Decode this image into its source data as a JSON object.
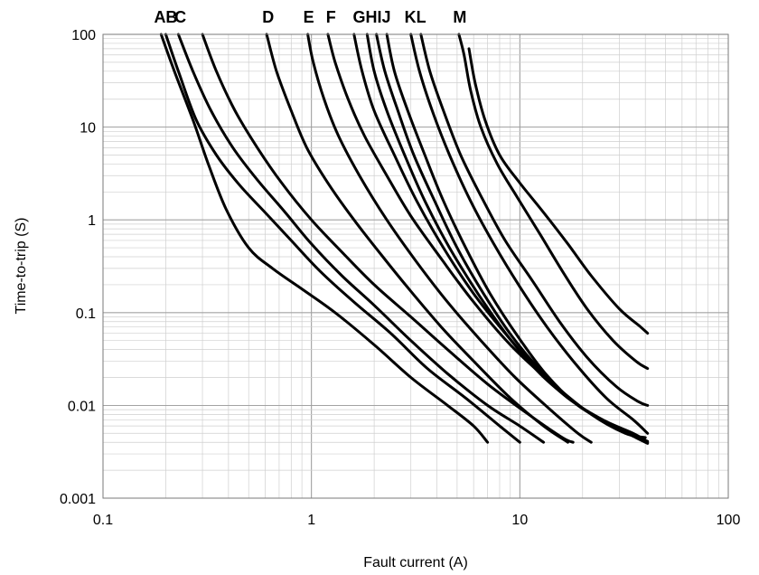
{
  "chart_data": {
    "type": "line",
    "xlabel": "Fault current (A)",
    "ylabel": "Time-to-trip (S)",
    "x_scale": "log",
    "y_scale": "log",
    "xlim": [
      0.1,
      100
    ],
    "ylim": [
      0.001,
      100
    ],
    "x_tick_labels": [
      "0.1",
      "1",
      "10",
      "100"
    ],
    "y_tick_labels": [
      "0.001",
      "0.01",
      "0.1",
      "1",
      "10",
      "100"
    ],
    "grid": true,
    "curve_labels": [
      "AB",
      "C",
      "D",
      "E",
      "F",
      "GHIJ",
      "KL",
      "M"
    ],
    "series": [
      {
        "x": [
          0.19,
          0.22,
          0.27,
          0.32,
          0.39,
          0.5,
          0.65,
          0.9,
          1.3,
          2,
          3,
          4.5,
          6,
          7
        ],
        "y": [
          100,
          40,
          12,
          4,
          1.3,
          0.5,
          0.3,
          0.18,
          0.1,
          0.045,
          0.02,
          0.01,
          0.006,
          0.004
        ]
      },
      {
        "x": [
          0.2,
          0.23,
          0.28,
          0.35,
          0.45,
          0.6,
          0.8,
          1.1,
          1.6,
          2.4,
          3.6,
          5.5,
          8,
          10
        ],
        "y": [
          100,
          40,
          12,
          5,
          2.4,
          1.2,
          0.6,
          0.28,
          0.13,
          0.06,
          0.025,
          0.012,
          0.006,
          0.004
        ]
      },
      {
        "x": [
          0.23,
          0.27,
          0.33,
          0.42,
          0.55,
          0.75,
          1,
          1.4,
          2,
          3,
          4.5,
          7,
          10,
          13
        ],
        "y": [
          100,
          40,
          15,
          6,
          2.7,
          1.2,
          0.55,
          0.25,
          0.12,
          0.05,
          0.022,
          0.01,
          0.006,
          0.004
        ]
      },
      {
        "x": [
          0.3,
          0.35,
          0.43,
          0.55,
          0.72,
          1,
          1.4,
          2,
          3,
          4.5,
          7,
          11,
          16,
          18
        ],
        "y": [
          100,
          40,
          15,
          6,
          2.5,
          1,
          0.45,
          0.2,
          0.09,
          0.04,
          0.017,
          0.008,
          0.0045,
          0.004
        ]
      },
      {
        "x": [
          0.61,
          0.68,
          0.8,
          0.95,
          1.2,
          1.6,
          2.2,
          3,
          4.2,
          6,
          9,
          13,
          17
        ],
        "y": [
          100,
          40,
          15,
          6,
          2.5,
          1,
          0.4,
          0.17,
          0.07,
          0.03,
          0.012,
          0.006,
          0.004
        ]
      },
      {
        "x": [
          0.96,
          1.02,
          1.15,
          1.35,
          1.7,
          2.3,
          3.2,
          4.5,
          6.5,
          9.5,
          14,
          19,
          22
        ],
        "y": [
          100,
          50,
          20,
          8,
          3,
          1,
          0.35,
          0.13,
          0.05,
          0.02,
          0.009,
          0.005,
          0.004
        ]
      },
      {
        "x": [
          1.2,
          1.3,
          1.5,
          1.8,
          2.3,
          3,
          4.2,
          6,
          9,
          14,
          22,
          32,
          40
        ],
        "y": [
          100,
          50,
          20,
          8,
          3,
          1.1,
          0.38,
          0.13,
          0.045,
          0.018,
          0.008,
          0.005,
          0.0045
        ]
      },
      {
        "x": [
          1.6,
          1.75,
          2,
          2.5,
          3.2,
          4.3,
          6,
          8.5,
          12,
          17,
          25,
          35,
          40
        ],
        "y": [
          100,
          40,
          15,
          5,
          1.6,
          0.5,
          0.16,
          0.06,
          0.025,
          0.012,
          0.007,
          0.005,
          0.0042
        ]
      },
      {
        "x": [
          1.85,
          2,
          2.3,
          2.8,
          3.5,
          4.6,
          6.3,
          8.8,
          12.5,
          18,
          26,
          35,
          41
        ],
        "y": [
          100,
          40,
          15,
          5,
          1.6,
          0.5,
          0.16,
          0.055,
          0.022,
          0.011,
          0.0065,
          0.0048,
          0.0041
        ]
      },
      {
        "x": [
          2.05,
          2.25,
          2.6,
          3.1,
          3.9,
          5,
          6.7,
          9.2,
          13,
          18.5,
          27,
          36,
          41
        ],
        "y": [
          100,
          40,
          15,
          5,
          1.6,
          0.5,
          0.16,
          0.055,
          0.022,
          0.0105,
          0.0062,
          0.0046,
          0.004
        ]
      },
      {
        "x": [
          2.3,
          2.5,
          2.9,
          3.5,
          4.3,
          5.5,
          7.2,
          9.8,
          13.5,
          19,
          28,
          36,
          41
        ],
        "y": [
          100,
          40,
          15,
          5,
          1.6,
          0.5,
          0.16,
          0.055,
          0.021,
          0.01,
          0.006,
          0.0045,
          0.0039
        ]
      },
      {
        "x": [
          3,
          3.3,
          3.8,
          4.6,
          5.8,
          7.5,
          10,
          13.5,
          18.5,
          26,
          35,
          41
        ],
        "y": [
          100,
          40,
          15,
          5,
          1.6,
          0.55,
          0.19,
          0.07,
          0.028,
          0.012,
          0.007,
          0.005
        ]
      },
      {
        "x": [
          3.35,
          3.7,
          4.3,
          5.2,
          6.6,
          8.5,
          11.5,
          15.5,
          21,
          29,
          37,
          41
        ],
        "y": [
          100,
          40,
          15,
          5,
          1.7,
          0.6,
          0.22,
          0.08,
          0.033,
          0.016,
          0.011,
          0.01
        ]
      },
      {
        "x": [
          5.1,
          5.4,
          5.8,
          6.5,
          7.8,
          9.8,
          12.5,
          16,
          21,
          28,
          36,
          41
        ],
        "y": [
          100,
          60,
          25,
          10,
          4,
          1.7,
          0.7,
          0.28,
          0.11,
          0.05,
          0.03,
          0.025
        ]
      },
      {
        "x": [
          5.7,
          6.1,
          6.8,
          8,
          10,
          13,
          17,
          22,
          30,
          38,
          41
        ],
        "y": [
          70,
          30,
          12,
          5,
          2.5,
          1.2,
          0.55,
          0.25,
          0.11,
          0.07,
          0.06
        ]
      }
    ]
  }
}
